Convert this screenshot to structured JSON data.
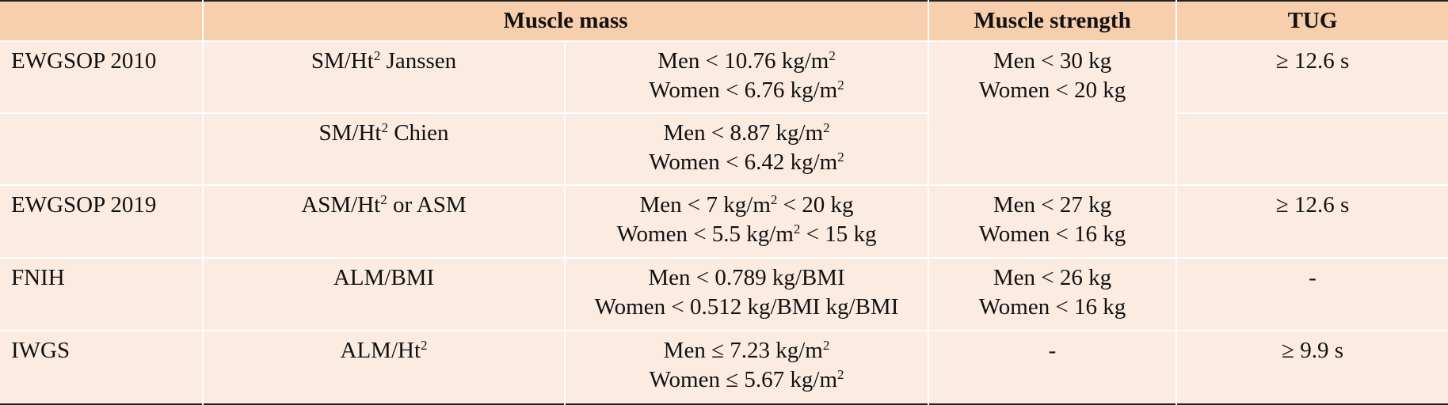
{
  "header": {
    "col0": "",
    "muscle_mass": "Muscle mass",
    "muscle_strength": "Muscle strength",
    "tug": "TUG"
  },
  "rows": [
    {
      "criteria": "EWGSOP 2010",
      "method": {
        "pre": "SM/Ht",
        "sup": "2",
        "post": " Janssen"
      },
      "mass": [
        {
          "pre": "Men < 10.76 kg/m",
          "sup": "2",
          "post": ""
        },
        {
          "pre": "Women < 6.76 kg/m",
          "sup": "2",
          "post": ""
        }
      ],
      "strength": [
        "Men < 30 kg",
        "Women < 20 kg"
      ],
      "tug": "≥ 12.6 s"
    },
    {
      "criteria": "",
      "method": {
        "pre": "SM/Ht",
        "sup": "2",
        "post": " Chien"
      },
      "mass": [
        {
          "pre": "Men < 8.87 kg/m",
          "sup": "2",
          "post": ""
        },
        {
          "pre": "Women < 6.42 kg/m",
          "sup": "2",
          "post": ""
        }
      ],
      "tug": ""
    },
    {
      "criteria": "EWGSOP 2019",
      "method": {
        "pre": "ASM/Ht",
        "sup": "2",
        "post": " or ASM"
      },
      "mass": [
        {
          "pre": "Men < 7 kg/m",
          "sup": "2",
          "post": " < 20 kg"
        },
        {
          "pre": "Women < 5.5 kg/m",
          "sup": "2",
          "post": " < 15 kg"
        }
      ],
      "strength": [
        "Men < 27 kg",
        "Women < 16 kg"
      ],
      "tug": "≥ 12.6 s"
    },
    {
      "criteria": "FNIH",
      "method": {
        "pre": "ALM/BMI",
        "sup": "",
        "post": ""
      },
      "mass": [
        {
          "pre": "Men < 0.789 kg/BMI",
          "sup": "",
          "post": ""
        },
        {
          "pre": "Women < 0.512 kg/BMI kg/BMI",
          "sup": "",
          "post": ""
        }
      ],
      "strength": [
        "Men < 26 kg",
        "Women < 16 kg"
      ],
      "tug": "-"
    },
    {
      "criteria": "IWGS",
      "method": {
        "pre": "ALM/Ht",
        "sup": "2",
        "post": ""
      },
      "mass": [
        {
          "pre": "Men ≤ 7.23 kg/m",
          "sup": "2",
          "post": ""
        },
        {
          "pre": "Women ≤ 5.67 kg/m",
          "sup": "2",
          "post": ""
        }
      ],
      "strength": [
        "-"
      ],
      "tug": "≥ 9.9 s"
    }
  ]
}
